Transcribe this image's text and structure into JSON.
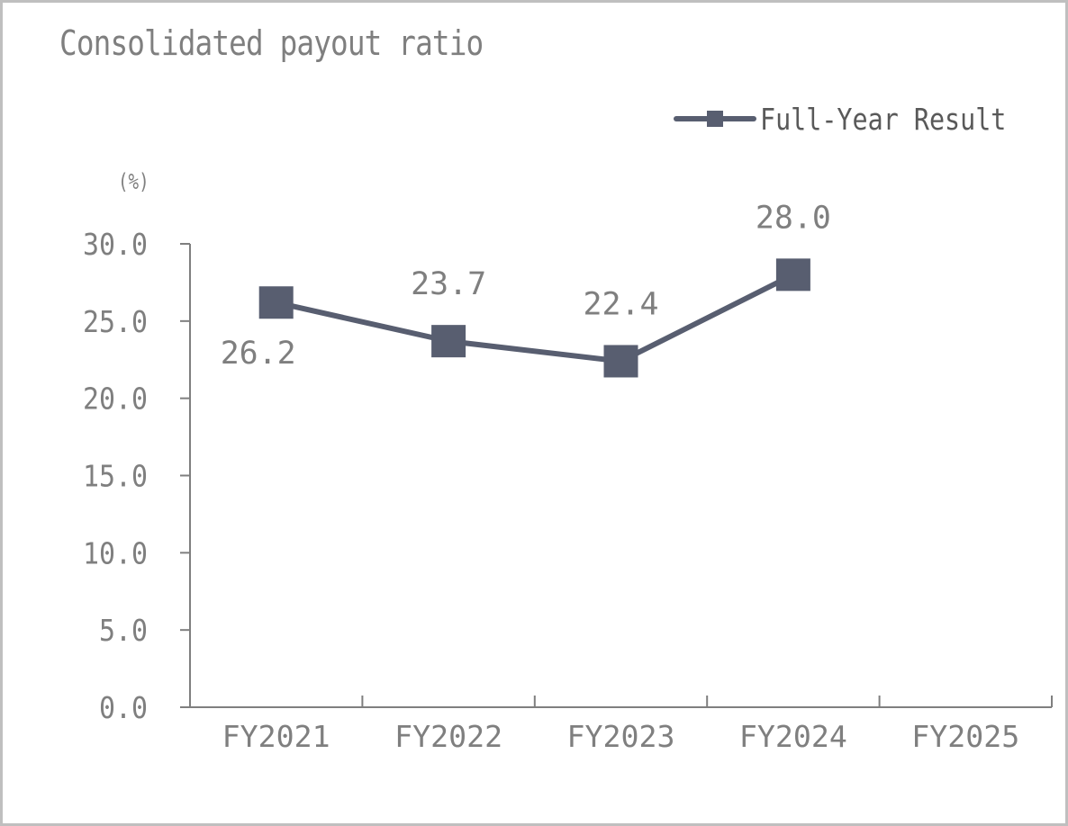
{
  "title": "Consolidated payout ratio",
  "legend": {
    "label": "Full-Year Result",
    "color": "#585e70"
  },
  "y_unit": "(%)",
  "y_ticks": [
    "30.0",
    "25.0",
    "20.0",
    "15.0",
    "10.0",
    "5.0",
    "0.0"
  ],
  "x_ticks": [
    "FY2021",
    "FY2022",
    "FY2023",
    "FY2024",
    "FY2025"
  ],
  "data_labels": [
    "26.2",
    "23.7",
    "22.4",
    "28.0"
  ],
  "chart_data": {
    "type": "line",
    "title": "Consolidated payout ratio",
    "xlabel": "",
    "ylabel": "(%)",
    "categories": [
      "FY2021",
      "FY2022",
      "FY2023",
      "FY2024",
      "FY2025"
    ],
    "series": [
      {
        "name": "Full-Year Result",
        "values": [
          26.2,
          23.7,
          22.4,
          28.0,
          null
        ],
        "color": "#585e70",
        "marker": "square"
      }
    ],
    "ylim": [
      0,
      30
    ],
    "yticks": [
      0,
      5,
      10,
      15,
      20,
      25,
      30
    ],
    "grid": false,
    "legend_position": "top-right"
  }
}
